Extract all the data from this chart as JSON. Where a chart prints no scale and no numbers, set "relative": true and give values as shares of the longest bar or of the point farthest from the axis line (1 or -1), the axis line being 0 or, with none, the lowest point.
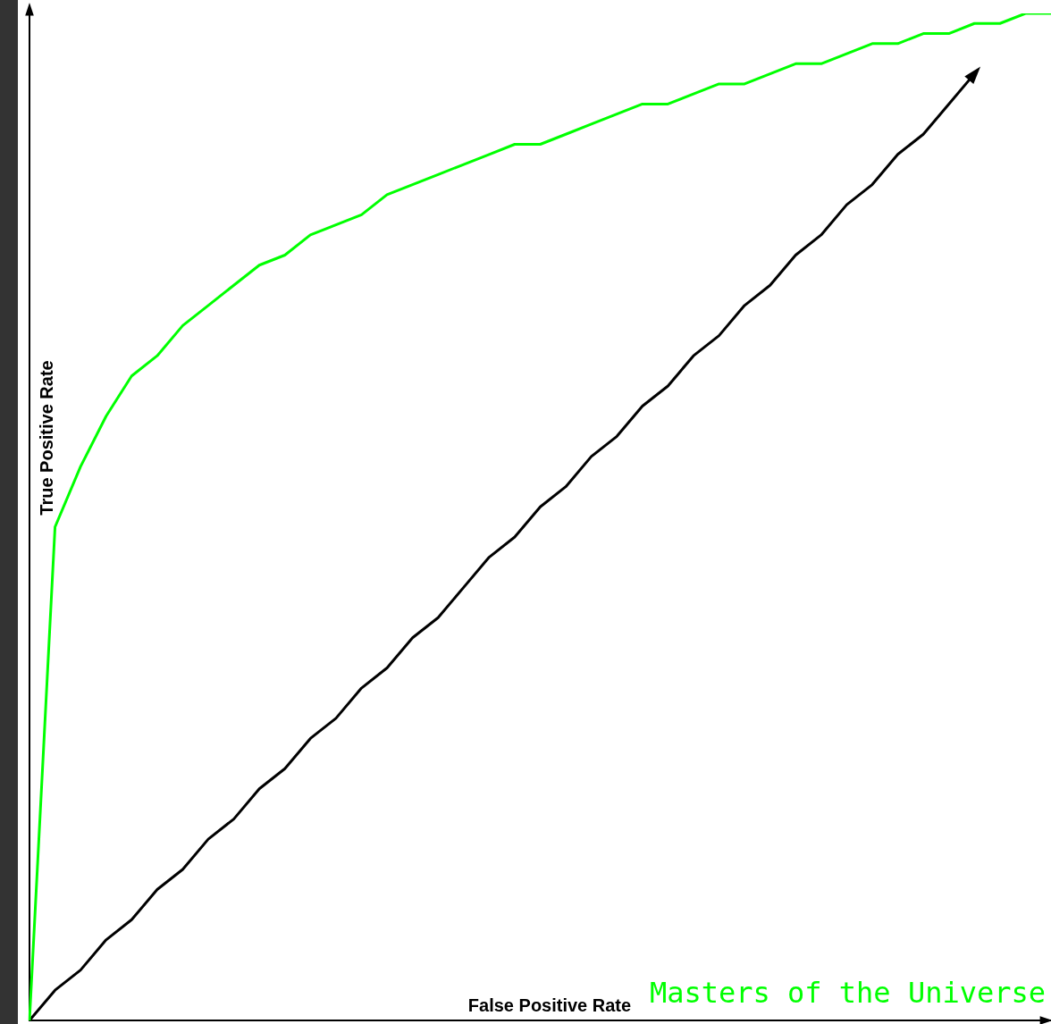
{
  "chart_data": {
    "type": "line",
    "relative": true,
    "xlabel": "False Positive Rate",
    "ylabel": "True Positive Rate",
    "tick_labels": false,
    "grid": false,
    "legend": "bottom right",
    "marker": "none",
    "line_style": "solid",
    "categories": [
      null,
      null,
      null,
      null,
      null,
      null,
      null,
      null,
      null,
      null,
      null,
      null,
      null,
      null,
      null,
      null,
      null,
      null,
      null,
      null,
      null,
      null,
      null,
      null,
      null,
      null,
      null,
      null,
      null,
      null,
      null,
      null,
      null,
      null,
      null,
      null,
      null,
      null,
      null,
      null,
      null
    ],
    "series": [
      {
        "name": "Masters of the Universe",
        "color": "#00ff00",
        "values": [
          0,
          0.49,
          0.55,
          0.6,
          0.64,
          0.66,
          0.69,
          0.71,
          0.73,
          0.75,
          0.76,
          0.78,
          0.79,
          0.8,
          0.82,
          0.83,
          0.84,
          0.85,
          0.86,
          0.87,
          0.87,
          0.88,
          0.89,
          0.9,
          0.91,
          0.91,
          0.92,
          0.93,
          0.93,
          0.94,
          0.95,
          0.95,
          0.96,
          0.97,
          0.97,
          0.98,
          0.98,
          0.99,
          0.99,
          1,
          1
        ]
      },
      {
        "color": "#000000",
        "values": [
          0,
          0.03,
          0.05,
          0.08,
          0.1,
          0.13,
          0.15,
          0.18,
          0.2,
          0.23,
          0.25,
          0.28,
          0.3,
          0.33,
          0.35,
          0.38,
          0.4,
          0.43,
          0.46,
          0.48,
          0.51,
          0.53,
          0.56,
          0.58,
          0.61,
          0.63,
          0.66,
          0.68,
          0.71,
          0.73,
          0.76,
          0.78,
          0.81,
          0.83,
          0.86,
          0.88,
          0.91,
          0.94,
          null,
          null,
          null
        ]
      }
    ]
  }
}
